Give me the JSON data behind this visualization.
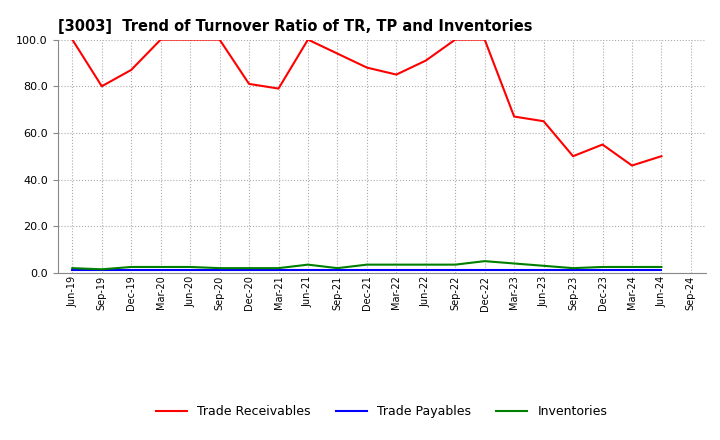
{
  "title": "[3003]  Trend of Turnover Ratio of TR, TP and Inventories",
  "x_labels": [
    "Jun-19",
    "Sep-19",
    "Dec-19",
    "Mar-20",
    "Jun-20",
    "Sep-20",
    "Dec-20",
    "Mar-21",
    "Jun-21",
    "Sep-21",
    "Dec-21",
    "Mar-22",
    "Jun-22",
    "Sep-22",
    "Dec-22",
    "Mar-23",
    "Jun-23",
    "Sep-23",
    "Dec-23",
    "Mar-24",
    "Jun-24",
    "Sep-24"
  ],
  "trade_receivables": [
    100.0,
    80.0,
    87.0,
    100.0,
    100.0,
    100.0,
    81.0,
    79.0,
    100.0,
    94.0,
    88.0,
    85.0,
    91.0,
    100.0,
    100.0,
    67.0,
    65.0,
    50.0,
    55.0,
    46.0,
    50.0,
    null
  ],
  "trade_payables": [
    1.0,
    1.0,
    1.0,
    1.0,
    1.0,
    1.0,
    1.0,
    1.0,
    1.0,
    1.0,
    1.0,
    1.0,
    1.0,
    1.0,
    1.0,
    1.0,
    1.0,
    1.0,
    1.0,
    1.0,
    1.0,
    null
  ],
  "inventories": [
    2.0,
    1.5,
    2.5,
    2.5,
    2.5,
    2.0,
    2.0,
    2.0,
    3.5,
    2.0,
    3.5,
    3.5,
    3.5,
    3.5,
    5.0,
    4.0,
    3.0,
    2.0,
    2.5,
    2.5,
    2.5,
    null
  ],
  "ylim": [
    0,
    100
  ],
  "yticks": [
    0.0,
    20.0,
    40.0,
    60.0,
    80.0,
    100.0
  ],
  "color_tr": "#FF0000",
  "color_tp": "#0000FF",
  "color_inv": "#008000",
  "legend_labels": [
    "Trade Receivables",
    "Trade Payables",
    "Inventories"
  ],
  "background_color": "#FFFFFF",
  "grid_color": "#AAAAAA"
}
